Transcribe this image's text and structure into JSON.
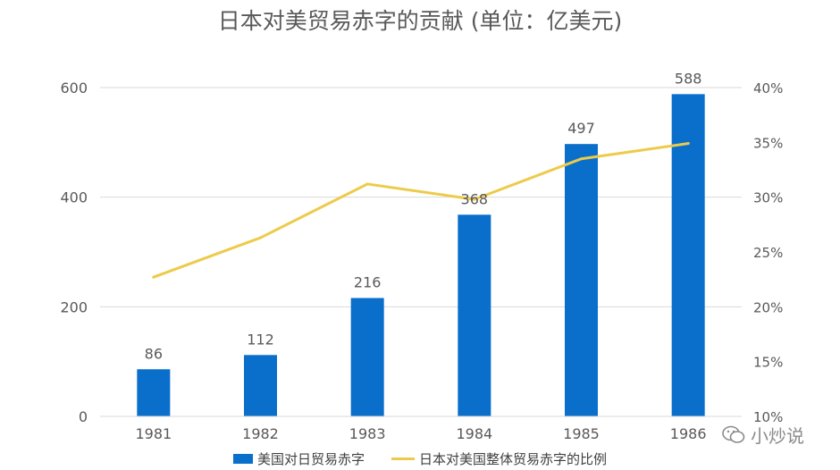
{
  "chart_data": {
    "type": "bar",
    "title": "日本对美贸易赤字的贡献 (单位：亿美元)",
    "categories": [
      "1981",
      "1982",
      "1983",
      "1984",
      "1985",
      "1986"
    ],
    "bar_labels": [
      "86",
      "112",
      "216",
      "368",
      "497",
      "588"
    ],
    "series": [
      {
        "name": "美国对日贸易赤字",
        "type": "bar",
        "axis": "left",
        "values": [
          86,
          112,
          216,
          368,
          497,
          588
        ],
        "color": "#0A6FCB"
      },
      {
        "name": "日本对美国整体贸易赤字的比例",
        "type": "line",
        "axis": "right",
        "values": [
          0.227,
          0.263,
          0.312,
          0.298,
          0.335,
          0.349
        ],
        "color": "#EDCB4A"
      }
    ],
    "left_axis": {
      "ylim": [
        0,
        600
      ],
      "ticks": [
        0,
        200,
        400,
        600
      ],
      "tick_labels": [
        "0",
        "200",
        "400",
        "600"
      ]
    },
    "right_axis": {
      "ylim": [
        0.1,
        0.4
      ],
      "ticks": [
        0.1,
        0.15,
        0.2,
        0.25,
        0.3,
        0.35,
        0.4
      ],
      "tick_labels": [
        "10%",
        "15%",
        "20%",
        "25%",
        "30%",
        "35%",
        "40%"
      ]
    },
    "grid": true,
    "legend_position": "bottom"
  },
  "watermark": {
    "text": "小炒说",
    "icon": "wechat-icon"
  },
  "colors": {
    "axis_text": "#595959",
    "grid": "#D9D9D9"
  }
}
